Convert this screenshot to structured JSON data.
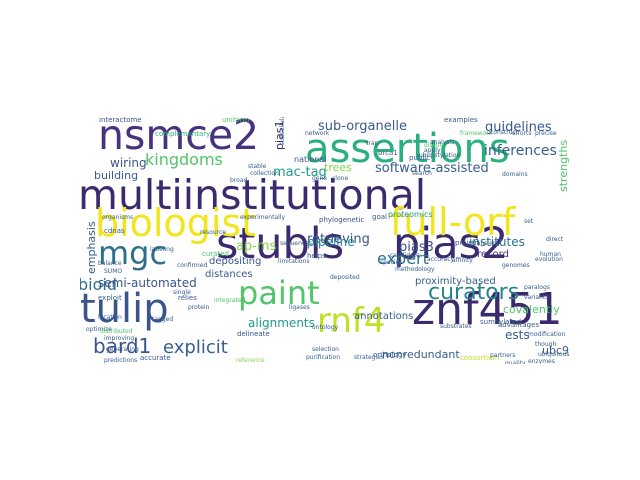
{
  "colors": {
    "dark_purple": "#3b2a6e",
    "indigo": "#46327e",
    "slate_blue": "#3a548c",
    "steel_blue": "#365d8d",
    "teal_blue": "#2d708e",
    "teal": "#25858e",
    "sea_green": "#1e9b8a",
    "green": "#2ab07f",
    "light_green": "#52c569",
    "lime": "#86d549",
    "yellow_green": "#c2df23",
    "yellow": "#f2e51d"
  },
  "words": {
    "multiinstitutional": "multiinstitutional",
    "stubls": "stubls",
    "pias2": "pias2",
    "znf451": "znf451",
    "nsmce2": "nsmce2",
    "assertions": "assertions",
    "biologist": "biologist",
    "full_orf": "full-orf",
    "tulip": "tulip",
    "mgc": "mgc",
    "paint": "paint",
    "rnf4": "rnf4",
    "curators": "curators",
    "bard1": "bard1",
    "explicit": "explicit",
    "kingdoms": "kingdoms",
    "expert": "expert",
    "bioid": "bioid",
    "guidelines": "guidelines",
    "sub_organelle": "sub-organelle",
    "inferences": "inferences",
    "software_assisted": "software-assisted",
    "mac_tag": "mac-tag",
    "wiring": "wiring",
    "building": "building",
    "trees": "trees",
    "ap_ms": "ap-ms",
    "retrieving": "retrieving",
    "pipeline": "pipeline",
    "pias3": "pias3",
    "institutes": "institutes",
    "semi_automated": "semi-automated",
    "depositing": "depositing",
    "alignments": "alignments",
    "annotations": "annotations",
    "covalently": "covalently",
    "nonredundant": "nonredundant",
    "ubc9": "ubc9",
    "ests": "ests",
    "proximity_based": "proximity-based",
    "record": "record",
    "emphasis": "emphasis",
    "pias1": "pias1",
    "strengths": "strengths",
    "interactome": "interactome",
    "complementary": "complementary",
    "uniform": "uniform",
    "examples": "examples",
    "national": "national",
    "distances": "distances",
    "phylogenetic": "phylogenetic",
    "proteomics": "proteomics",
    "exploit": "exploit",
    "relies": "relies",
    "delineate": "delineate",
    "orthology": "orthology",
    "consortium": "consortium",
    "advantages": "advantages",
    "accurate": "accurate",
    "helps": "helps",
    "goal": "goal",
    "brca1": "brca1",
    "public": "public",
    "project": "project",
    "curated": "curated",
    "cdnas": "cdnas",
    "optimize": "optimize",
    "distributed": "distributed",
    "predictions": "predictions",
    "reference": "reference",
    "purification": "purification",
    "strategies": "strategies",
    "sumoylated": "sumoylated",
    "ubiquitylation": "ubiquitylation",
    "ontology": "ontology",
    "accuracy": "accuracy",
    "methodology": "methodology",
    "sequences": "sequences",
    "limitations": "limitations",
    "collection": "collection",
    "broad": "broad",
    "network": "network",
    "framework": "framework",
    "efforts": "efforts",
    "generating": "generating",
    "single": "single",
    "integrated": "integrated",
    "experimentally": "experimentally",
    "confirmed": "confirmed",
    "ligases": "ligases",
    "substrates": "substrates",
    "paralogs": "paralogs",
    "domains": "domains",
    "modification": "modification",
    "trap": "trap",
    "selection": "selection",
    "balance": "balance",
    "location": "location",
    "affinity": "affinity",
    "genomes": "genomes",
    "set": "set",
    "transient": "transient",
    "direct": "direct",
    "subcellular": "subcellular",
    "apply": "apply",
    "discuss": "discuss",
    "improving": "improving",
    "organisms": "organisms",
    "sumo": "SUMO",
    "labeling": "labeling",
    "protein": "protein",
    "species": "species",
    "construct": "construct",
    "evolution": "evolution",
    "tagged": "tagged",
    "candidate": "candidate",
    "partners": "partners",
    "resource": "resource",
    "stable": "stable",
    "human": "human",
    "deposited": "deposited",
    "enzymes": "enzymes",
    "quality": "quality",
    "variants": "variants",
    "ubiquitous": "ubiquitous",
    "analysis": "analysis",
    "though": "though",
    "search": "search",
    "gene": "gene",
    "clone": "clone",
    "precise": "precise"
  }
}
